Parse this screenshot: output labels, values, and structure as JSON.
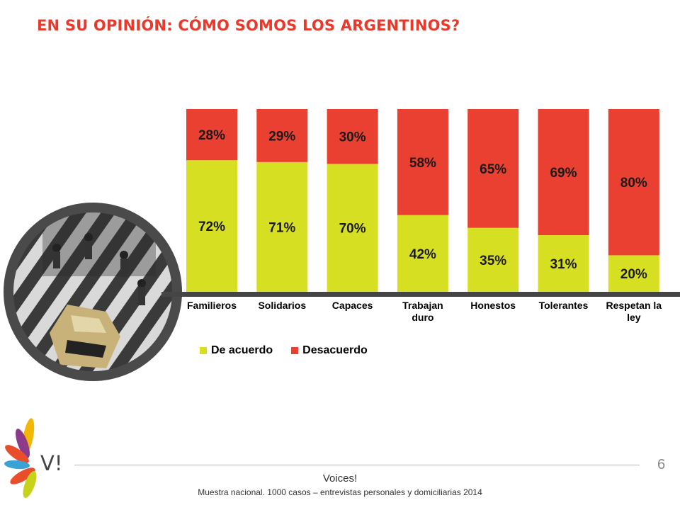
{
  "slide": {
    "title": "EN SU OPINIÓN: CÓMO SOMOS LOS ARGENTINOS?",
    "page_number": "6",
    "brand": "Voices!",
    "logo_text": "V!",
    "note": "Muestra nacional. 1000 casos – entrevistas personales y domiciliarias 2014"
  },
  "colors": {
    "de_acuerdo": "#d7df23",
    "desacuerdo": "#ea4031",
    "title": "#e8392c",
    "axis_bar": "#454545"
  },
  "chart_data": {
    "type": "bar",
    "stacked": true,
    "categories": [
      [
        "Familieros"
      ],
      [
        "Solidarios"
      ],
      [
        "Capaces"
      ],
      [
        "Trabajan",
        "duro"
      ],
      [
        "Honestos"
      ],
      [
        "Tolerantes"
      ],
      [
        "Respetan la",
        "ley"
      ]
    ],
    "series": [
      {
        "name": "De acuerdo",
        "values": [
          72,
          71,
          70,
          42,
          35,
          31,
          20
        ],
        "labels": [
          "72%",
          "71%",
          "70%",
          "42%",
          "35%",
          "31%",
          "20%"
        ]
      },
      {
        "name": "Desacuerdo",
        "values": [
          28,
          29,
          30,
          58,
          65,
          69,
          80
        ],
        "labels": [
          "28%",
          "29%",
          "30%",
          "58%",
          "65%",
          "69%",
          "80%"
        ]
      }
    ],
    "ylim": [
      0,
      100
    ],
    "legend_position": "bottom"
  }
}
